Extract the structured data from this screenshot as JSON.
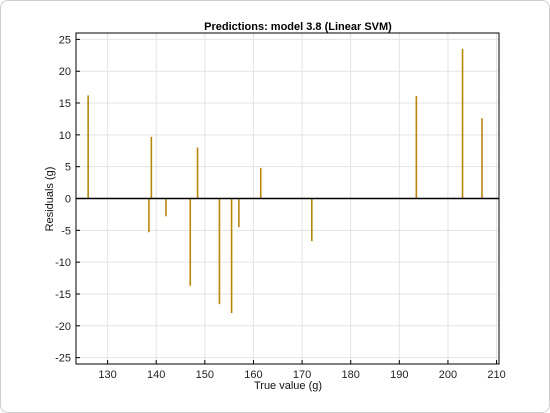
{
  "chart_data": {
    "type": "bar",
    "title": "Predictions: model 3.8 (Linear SVM)",
    "xlabel": "True value (g)",
    "ylabel": "Residuals (g)",
    "xlim": [
      123.5,
      210.5
    ],
    "ylim": [
      -26,
      26
    ],
    "xticks": [
      130,
      140,
      150,
      160,
      170,
      180,
      190,
      200,
      210
    ],
    "yticks": [
      -25,
      -20,
      -15,
      -10,
      -5,
      0,
      5,
      10,
      15,
      20,
      25
    ],
    "grid": true,
    "zero_line": true,
    "bar_color": "#b8860b",
    "points": [
      {
        "x": 126,
        "y": 16.2
      },
      {
        "x": 138.5,
        "y": -5.3
      },
      {
        "x": 139,
        "y": 9.7
      },
      {
        "x": 142,
        "y": -2.8
      },
      {
        "x": 147,
        "y": -13.7
      },
      {
        "x": 148.5,
        "y": 8.0
      },
      {
        "x": 153,
        "y": -16.6
      },
      {
        "x": 155.5,
        "y": -18.0
      },
      {
        "x": 157,
        "y": -4.5
      },
      {
        "x": 161.5,
        "y": 4.8
      },
      {
        "x": 172,
        "y": -6.7
      },
      {
        "x": 193.5,
        "y": 16.1
      },
      {
        "x": 203,
        "y": 23.5
      },
      {
        "x": 207,
        "y": 12.6
      }
    ]
  }
}
